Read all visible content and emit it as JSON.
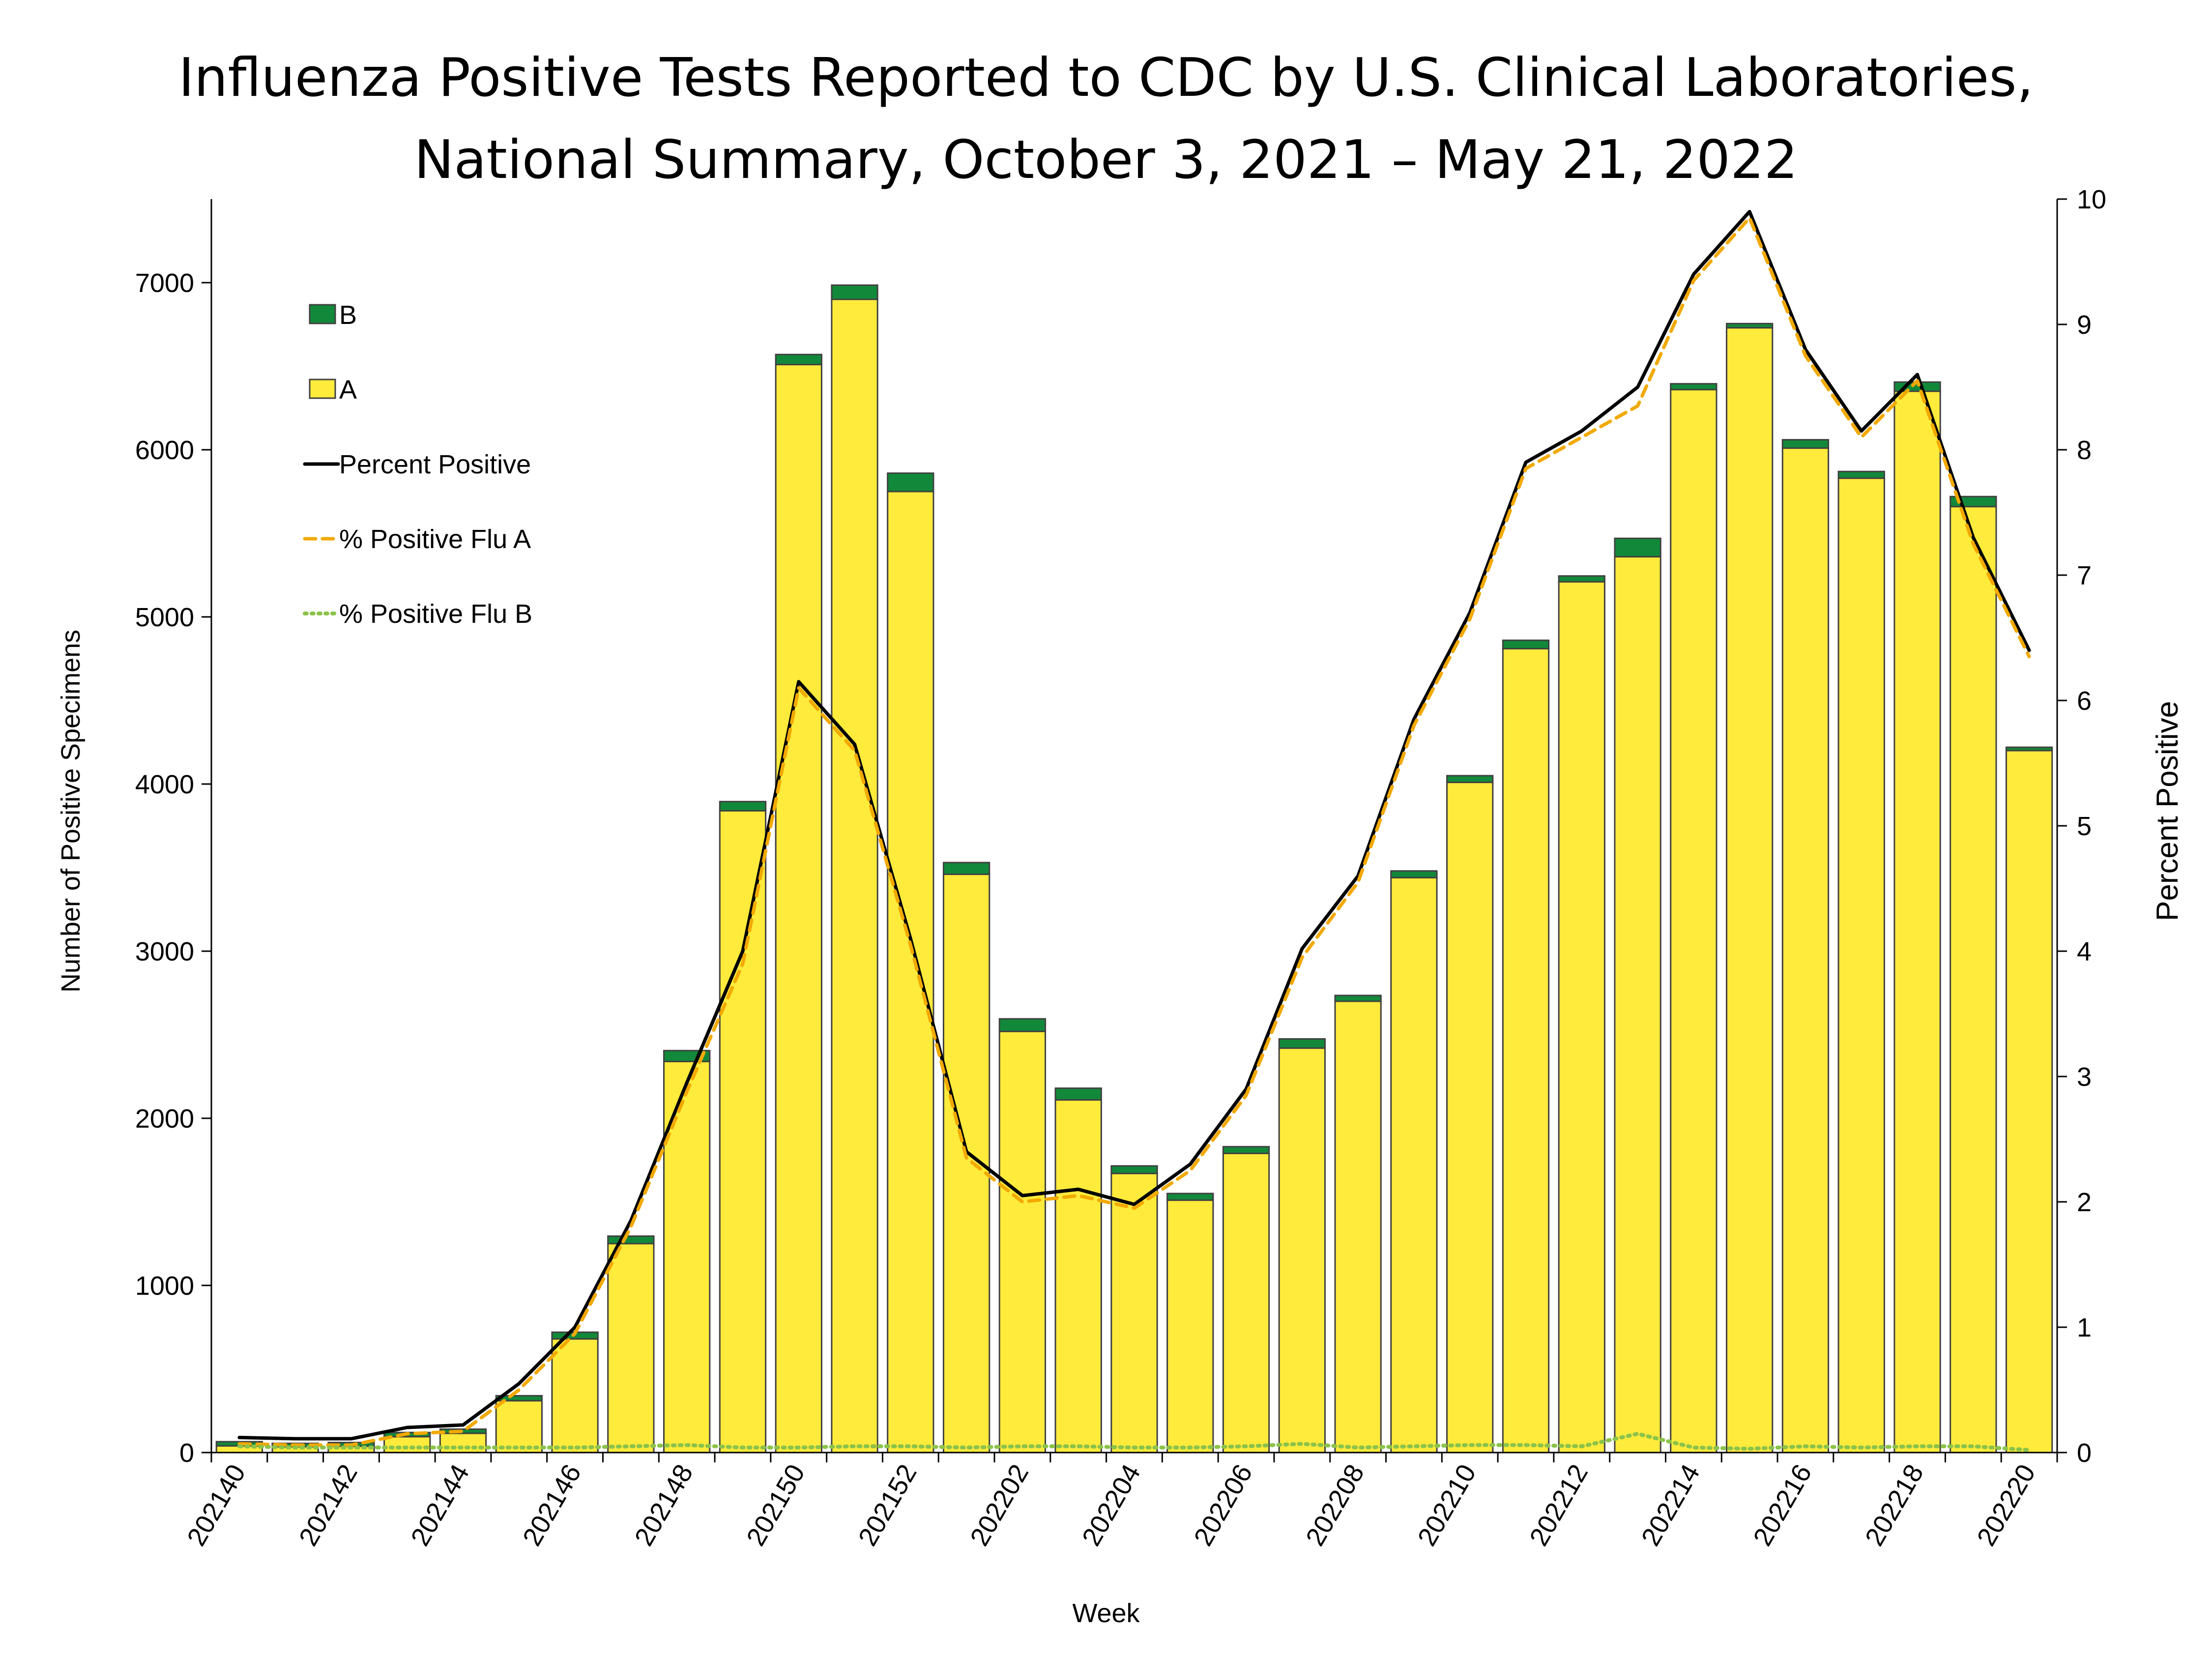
{
  "chart_data": {
    "type": "bar",
    "title_lines": [
      "Influenza Positive Tests Reported to CDC by U.S. Clinical Laboratories,",
      "National Summary, October 3, 2021 – May 21, 2022"
    ],
    "xlabel": "Week",
    "ylabel": "Number of Positive Specimens",
    "y2label": "Percent Positive",
    "ylim": [
      0,
      7500
    ],
    "yticks": [
      0,
      1000,
      2000,
      3000,
      4000,
      5000,
      6000,
      7000
    ],
    "y2lim": [
      0,
      10
    ],
    "y2ticks": [
      0,
      1,
      2,
      3,
      4,
      5,
      6,
      7,
      8,
      9,
      10
    ],
    "categories": [
      "202140",
      "202141",
      "202142",
      "202143",
      "202144",
      "202145",
      "202146",
      "202147",
      "202148",
      "202149",
      "202150",
      "202151",
      "202152",
      "202201",
      "202202",
      "202203",
      "202204",
      "202205",
      "202206",
      "202207",
      "202208",
      "202209",
      "202210",
      "202211",
      "202212",
      "202213",
      "202214",
      "202215",
      "202216",
      "202217",
      "202218",
      "202219",
      "202220"
    ],
    "tick_labels": [
      "202140",
      "202142",
      "202144",
      "202146",
      "202148",
      "202150",
      "202152",
      "202202",
      "202204",
      "202206",
      "202208",
      "202210",
      "202212",
      "202214",
      "202216",
      "202218",
      "202220"
    ],
    "series": [
      {
        "name": "A",
        "kind": "bar",
        "color": "#FFEB3B",
        "values": [
          40,
          35,
          38,
          95,
          115,
          310,
          680,
          1250,
          2340,
          3840,
          6510,
          6900,
          5750,
          3460,
          2520,
          2110,
          1670,
          1510,
          1790,
          2420,
          2700,
          3440,
          4010,
          4810,
          5210,
          5360,
          6360,
          6730,
          6010,
          5830,
          6350,
          5660,
          4200
        ]
      },
      {
        "name": "B",
        "kind": "bar",
        "color": "#12893A",
        "values": [
          25,
          20,
          22,
          25,
          25,
          30,
          40,
          45,
          65,
          55,
          60,
          85,
          110,
          70,
          75,
          70,
          45,
          40,
          40,
          55,
          35,
          40,
          40,
          50,
          35,
          110,
          35,
          25,
          50,
          40,
          55,
          60,
          20
        ]
      },
      {
        "name": "Percent Positive",
        "kind": "line",
        "color": "#000000",
        "values": [
          0.12,
          0.11,
          0.11,
          0.2,
          0.22,
          0.55,
          1.0,
          1.85,
          2.95,
          4.0,
          6.15,
          5.65,
          4.1,
          2.4,
          2.05,
          2.1,
          1.98,
          2.3,
          2.9,
          4.02,
          4.6,
          5.85,
          6.7,
          7.9,
          8.15,
          8.5,
          9.4,
          9.9,
          8.8,
          8.15,
          8.6,
          7.3,
          6.4
        ]
      },
      {
        "name": "% Positive Flu A",
        "kind": "line",
        "color": "#F2A900",
        "values": [
          0.07,
          0.06,
          0.06,
          0.15,
          0.17,
          0.5,
          0.95,
          1.8,
          2.88,
          3.9,
          6.1,
          5.6,
          4.05,
          2.35,
          2.0,
          2.05,
          1.95,
          2.25,
          2.85,
          3.95,
          4.55,
          5.8,
          6.65,
          7.85,
          8.1,
          8.35,
          9.35,
          9.85,
          8.75,
          8.1,
          8.55,
          7.25,
          6.35
        ]
      },
      {
        "name": "% Positive Flu B",
        "kind": "line",
        "color": "#8BC34A",
        "values": [
          0.05,
          0.04,
          0.04,
          0.04,
          0.04,
          0.04,
          0.04,
          0.05,
          0.06,
          0.04,
          0.04,
          0.05,
          0.05,
          0.04,
          0.05,
          0.05,
          0.04,
          0.04,
          0.05,
          0.07,
          0.04,
          0.05,
          0.06,
          0.06,
          0.05,
          0.15,
          0.04,
          0.03,
          0.05,
          0.04,
          0.05,
          0.05,
          0.02
        ]
      }
    ],
    "legend": {
      "placement": "top-left",
      "items": [
        {
          "label": "B",
          "kind": "bar",
          "color": "#12893A"
        },
        {
          "label": "A",
          "kind": "bar",
          "color": "#FFEB3B"
        },
        {
          "label": "Percent Positive",
          "kind": "line",
          "color": "#000000"
        },
        {
          "label": "% Positive Flu A",
          "kind": "dash",
          "color": "#F2A900"
        },
        {
          "label": "% Positive Flu B",
          "kind": "dot",
          "color": "#8BC34A"
        }
      ]
    }
  }
}
